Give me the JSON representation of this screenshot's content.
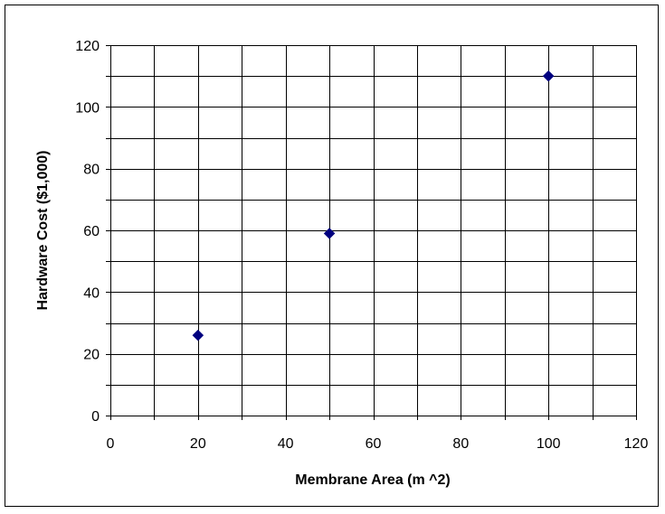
{
  "chart_data": {
    "type": "scatter",
    "title": "",
    "xlabel": "Membrane Area (m ^2)",
    "ylabel": "Hardware Cost ($1,000)",
    "xlim": [
      0,
      120
    ],
    "ylim": [
      0,
      120
    ],
    "x_ticks": [
      0,
      20,
      40,
      60,
      80,
      100,
      120
    ],
    "y_ticks": [
      0,
      20,
      40,
      60,
      80,
      100,
      120
    ],
    "x_gridlines": [
      0,
      10,
      20,
      30,
      40,
      50,
      60,
      70,
      80,
      90,
      100,
      110,
      120
    ],
    "y_gridlines": [
      0,
      10,
      20,
      30,
      40,
      50,
      60,
      70,
      80,
      90,
      100,
      110,
      120
    ],
    "grid": true,
    "legend": "none",
    "series": [
      {
        "marker": "diamond",
        "color": "#000080",
        "points": [
          {
            "x": 20,
            "y": 26
          },
          {
            "x": 50,
            "y": 59
          },
          {
            "x": 100,
            "y": 110
          }
        ]
      }
    ]
  }
}
